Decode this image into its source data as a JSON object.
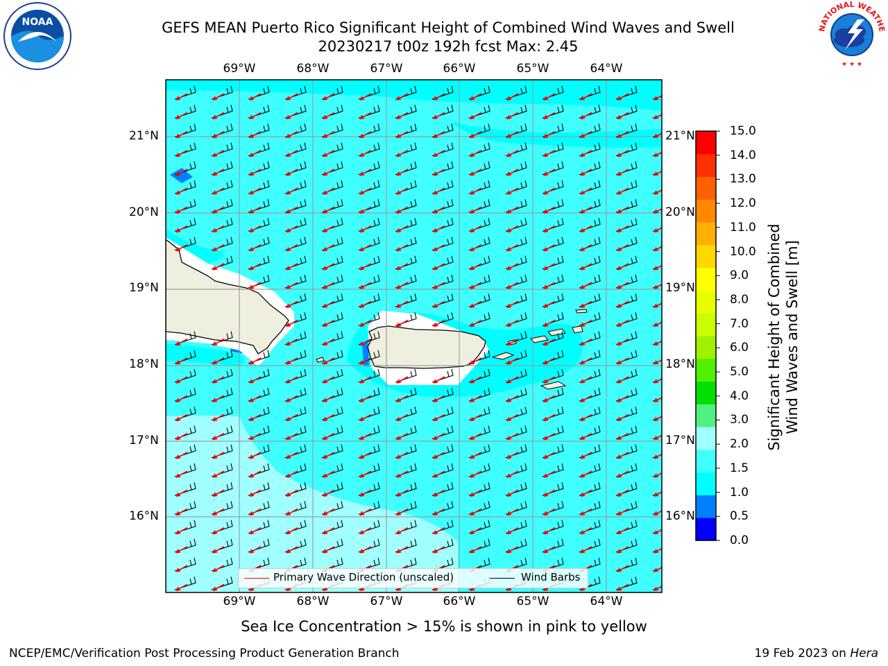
{
  "header": {
    "title_line1": "GEFS MEAN Puerto Rico Significant Height of Combined Wind Waves and Swell",
    "title_line2": "20230217 t00z 192h fcst   Max: 2.45"
  },
  "map": {
    "lon_labels": [
      "69°W",
      "68°W",
      "67°W",
      "66°W",
      "65°W",
      "64°W"
    ],
    "lat_labels": [
      "21°N",
      "20°N",
      "19°N",
      "18°N",
      "17°N",
      "16°N"
    ],
    "extent": {
      "lon_min": -70.0,
      "lon_max": -63.25,
      "lat_min": 15.05,
      "lat_max": 21.75
    },
    "ocean_color": "#40ffff"
  },
  "colorbar": {
    "label_line1": "Significant Height of Combined",
    "label_line2": "Wind Waves and Swell [m]",
    "ticks": [
      "15.0",
      "14.0",
      "13.0",
      "12.0",
      "11.0",
      "10.0",
      "9.0",
      "8.0",
      "7.0",
      "6.0",
      "5.0",
      "4.0",
      "3.0",
      "2.0",
      "1.5",
      "1.0",
      "0.5",
      "0.0"
    ],
    "colors": [
      "#0000ff",
      "#0080ff",
      "#00ffff",
      "#40ffff",
      "#a0ffff",
      "#50f080",
      "#00e000",
      "#50f000",
      "#a0f000",
      "#c8ff00",
      "#e8ff00",
      "#ffff00",
      "#ffd800",
      "#ffb000",
      "#ff8800",
      "#ff6000",
      "#ff3000",
      "#ff0000"
    ]
  },
  "legend": {
    "wave_label": "Primary Wave Direction (unscaled)",
    "barb_label": "Wind Barbs",
    "wave_color": "#ff0000",
    "barb_color": "#000000"
  },
  "caption": "Sea Ice Concentration > 15% is shown in pink to yellow",
  "footer": {
    "left": "NCEP/EMC/Verification Post Processing Product Generation Branch",
    "date": "19 Feb 2023 on ",
    "machine": "Hera"
  },
  "logos": {
    "noaa_text": "NOAA",
    "nws_text": "NATIONAL WEATHER SERVICE"
  }
}
